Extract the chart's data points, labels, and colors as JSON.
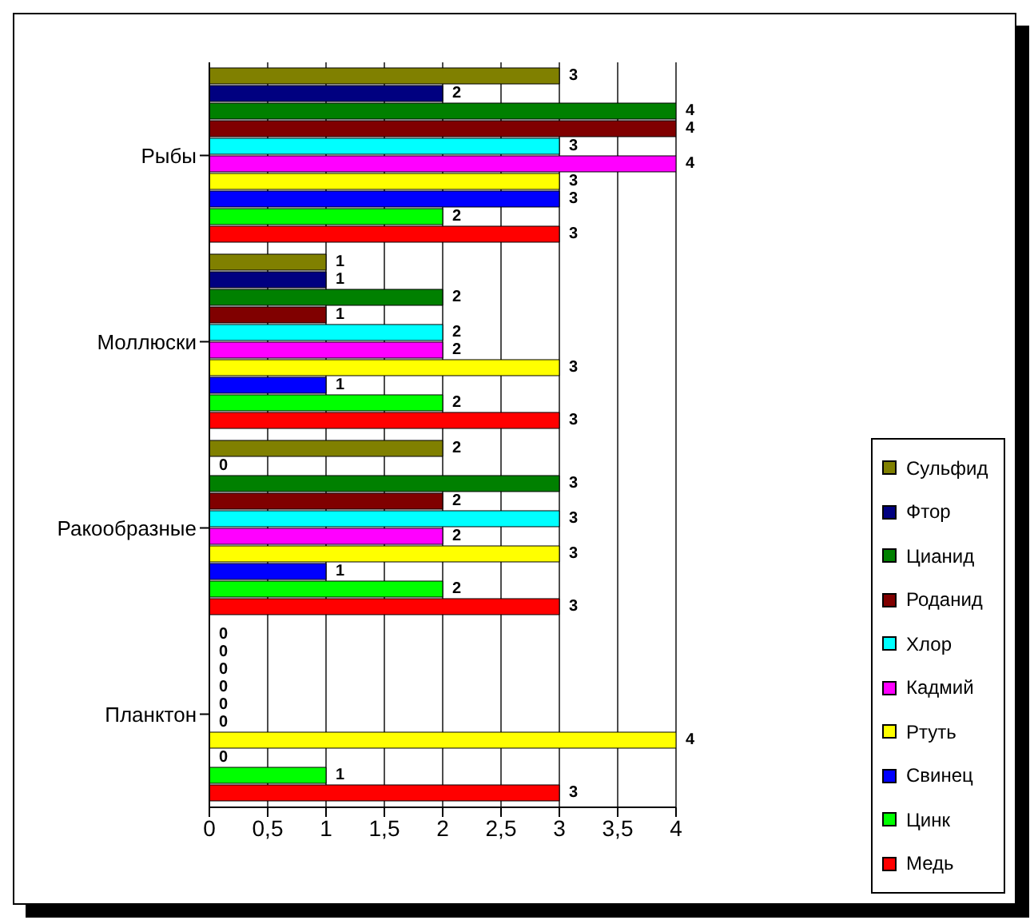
{
  "chart_data": {
    "type": "bar",
    "orientation": "horizontal",
    "categories": [
      "Рыбы",
      "Моллюски",
      "Ракообразные",
      "Планктон"
    ],
    "series": [
      {
        "name": "Сульфид",
        "color": "#808000",
        "values": [
          3,
          1,
          2,
          0
        ]
      },
      {
        "name": "Фтор",
        "color": "#000080",
        "values": [
          2,
          1,
          0,
          0
        ]
      },
      {
        "name": "Цианид",
        "color": "#008000",
        "values": [
          4,
          2,
          3,
          0
        ]
      },
      {
        "name": "Роданид",
        "color": "#800000",
        "values": [
          4,
          1,
          2,
          0
        ]
      },
      {
        "name": "Хлор",
        "color": "#00ffff",
        "values": [
          3,
          2,
          3,
          0
        ]
      },
      {
        "name": "Кадмий",
        "color": "#ff00ff",
        "values": [
          4,
          2,
          2,
          0
        ]
      },
      {
        "name": "Ртуть",
        "color": "#ffff00",
        "values": [
          3,
          3,
          3,
          4
        ]
      },
      {
        "name": "Свинец",
        "color": "#0000ff",
        "values": [
          3,
          1,
          1,
          0
        ]
      },
      {
        "name": "Цинк",
        "color": "#00ff00",
        "values": [
          2,
          2,
          2,
          1
        ]
      },
      {
        "name": "Медь",
        "color": "#ff0000",
        "values": [
          3,
          3,
          3,
          3
        ]
      }
    ],
    "xlim": [
      0,
      4
    ],
    "xticks": [
      0,
      {
        "value": 0.5,
        "label": "0,5"
      },
      1,
      {
        "value": 1.5,
        "label": "1,5"
      },
      2,
      {
        "value": 2.5,
        "label": "2,5"
      },
      3,
      {
        "value": 3.5,
        "label": "3,5"
      },
      4
    ],
    "grid": "x",
    "legend": "bottom right",
    "data_labels": true
  }
}
